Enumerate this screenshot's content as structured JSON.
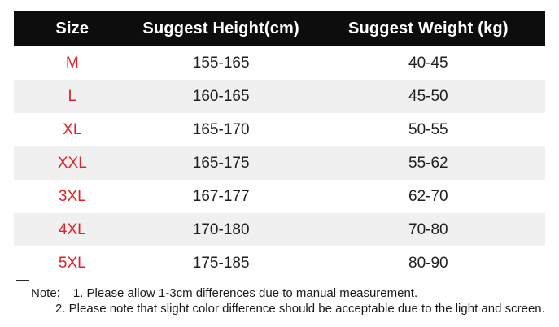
{
  "chart_data": {
    "type": "table",
    "columns": [
      "Size",
      "Suggest Height(cm)",
      "Suggest Weight (kg)"
    ],
    "rows": [
      {
        "size": "M",
        "height": "155-165",
        "weight": "40-45"
      },
      {
        "size": "L",
        "height": "160-165",
        "weight": "45-50"
      },
      {
        "size": "XL",
        "height": "165-170",
        "weight": "50-55"
      },
      {
        "size": "XXL",
        "height": "165-175",
        "weight": "55-62"
      },
      {
        "size": "3XL",
        "height": "167-177",
        "weight": "62-70"
      },
      {
        "size": "4XL",
        "height": "170-180",
        "weight": "70-80"
      },
      {
        "size": "5XL",
        "height": "175-185",
        "weight": "80-90"
      }
    ]
  },
  "note": {
    "label": "Note:",
    "items": [
      "1. Please allow 1-3cm differences due to manual measurement.",
      "2. Please note that slight color difference should be acceptable due to the light and screen."
    ]
  },
  "colors": {
    "header_bg": "#0d0d0d",
    "header_text": "#ffffff",
    "size_text": "#e02228",
    "body_text": "#1f1f1f",
    "row_alt_bg": "#f0f0f0"
  }
}
